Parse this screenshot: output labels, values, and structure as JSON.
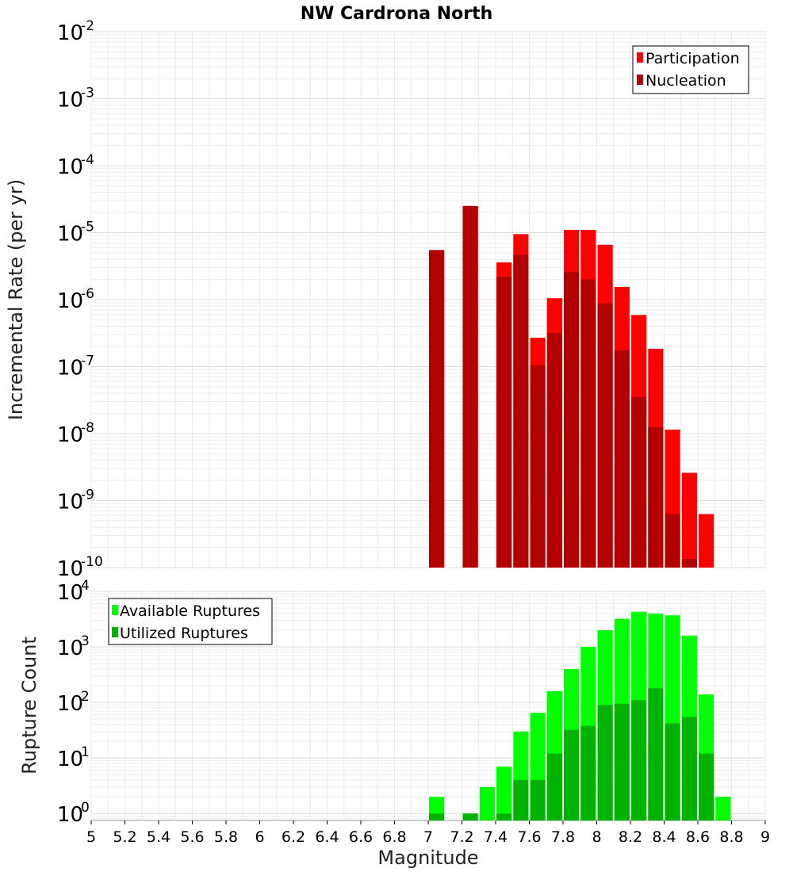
{
  "chart_data": [
    {
      "type": "bar",
      "title": "NW Cardrona North",
      "ylabel": "Incremental Rate (per yr)",
      "xlabel": "",
      "xlim": [
        5,
        9
      ],
      "ylim": [
        1e-10,
        0.01
      ],
      "yscale": "log",
      "grid": true,
      "legend_placement": "top-right",
      "bar_width": 0.09,
      "y_tick_exponents": [
        "-10",
        "-9",
        "-8",
        "-7",
        "-6",
        "-5",
        "-4",
        "-3",
        "-2"
      ],
      "y_tick_base": "10",
      "series": [
        {
          "name": "Participation",
          "color": "#ff0000",
          "x": [
            7.05,
            7.25,
            7.45,
            7.55,
            7.65,
            7.75,
            7.85,
            7.95,
            8.05,
            8.15,
            8.25,
            8.35,
            8.45,
            8.55,
            8.65
          ],
          "values": [
            5.5e-06,
            2.5e-05,
            3.6e-06,
            9.5e-06,
            2.7e-07,
            1.05e-06,
            1.1e-05,
            1.1e-05,
            6.6e-06,
            1.55e-06,
            5.9e-07,
            1.85e-07,
            1.15e-08,
            2.6e-09,
            6.3e-10
          ]
        },
        {
          "name": "Nucleation",
          "color": "#b30000",
          "x": [
            7.05,
            7.25,
            7.45,
            7.55,
            7.65,
            7.75,
            7.85,
            7.95,
            8.05,
            8.15,
            8.25,
            8.35,
            8.45,
            8.55
          ],
          "values": [
            5.5e-06,
            2.5e-05,
            2.2e-06,
            4.7e-06,
            1.05e-07,
            3.2e-07,
            2.6e-06,
            2e-06,
            8.8e-07,
            1.75e-07,
            3.5e-08,
            1.25e-08,
            6.3e-10,
            1.35e-10
          ]
        }
      ]
    },
    {
      "type": "bar",
      "title": "",
      "ylabel": "Rupture Count",
      "xlabel": "Magnitude",
      "xlim": [
        5,
        9
      ],
      "ylim": [
        0.75,
        10000
      ],
      "yscale": "log",
      "grid": true,
      "legend_placement": "top-left",
      "bar_width": 0.09,
      "y_tick_exponents": [
        "0",
        "1",
        "2",
        "3",
        "4"
      ],
      "y_tick_base": "10",
      "x_tick_labels": [
        "5",
        "5.2",
        "5.4",
        "5.6",
        "5.8",
        "6",
        "6.2",
        "6.4",
        "6.6",
        "6.8",
        "7",
        "7.2",
        "7.4",
        "7.6",
        "7.8",
        "8",
        "8.2",
        "8.4",
        "8.6",
        "8.8",
        "9"
      ],
      "series": [
        {
          "name": "Available Ruptures",
          "color": "#00ff00",
          "x": [
            7.05,
            7.25,
            7.35,
            7.45,
            7.55,
            7.65,
            7.75,
            7.85,
            7.95,
            8.05,
            8.15,
            8.25,
            8.35,
            8.45,
            8.55,
            8.65,
            8.75
          ],
          "values": [
            2,
            1,
            3,
            7,
            30,
            65,
            160,
            400,
            1000,
            2000,
            3200,
            4300,
            4000,
            3700,
            1600,
            140,
            2
          ]
        },
        {
          "name": "Utilized Ruptures",
          "color": "#00b300",
          "x": [
            7.05,
            7.25,
            7.45,
            7.55,
            7.65,
            7.75,
            7.85,
            7.95,
            8.05,
            8.15,
            8.25,
            8.35,
            8.45,
            8.55,
            8.65
          ],
          "values": [
            1,
            1,
            1,
            4,
            4,
            12,
            32,
            38,
            90,
            95,
            110,
            180,
            42,
            55,
            12
          ]
        }
      ]
    }
  ]
}
